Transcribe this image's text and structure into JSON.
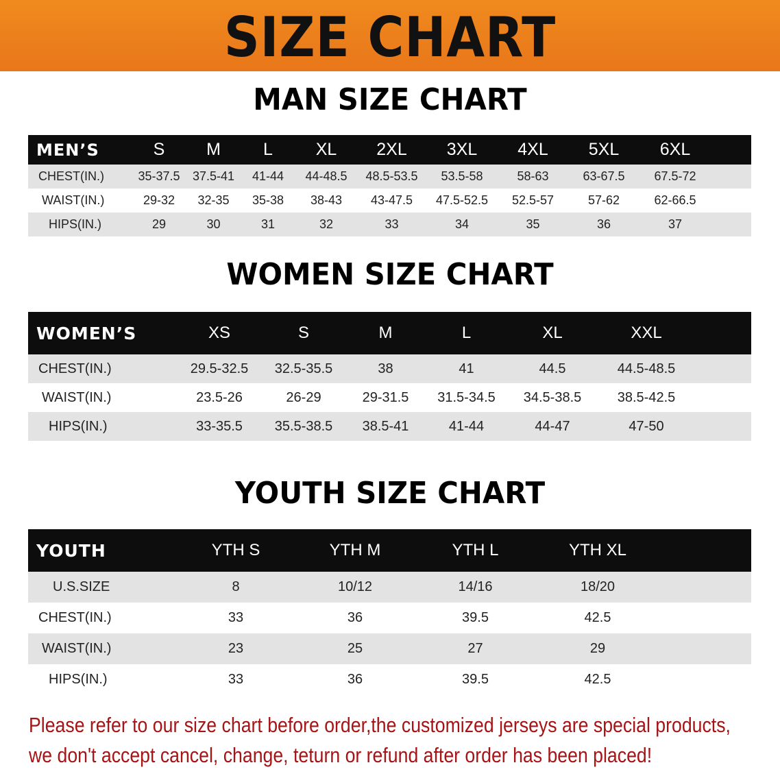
{
  "banner_title": "SIZE CHART",
  "sections": [
    {
      "title": "MAN SIZE CHART",
      "header": "MEN’S",
      "sizes": [
        "S",
        "M",
        "L",
        "XL",
        "2XL",
        "3XL",
        "4XL",
        "5XL",
        "6XL"
      ],
      "rows": [
        {
          "label": "CHEST(IN.)",
          "values": [
            "35-37.5",
            "37.5-41",
            "41-44",
            "44-48.5",
            "48.5-53.5",
            "53.5-58",
            "58-63",
            "63-67.5",
            "67.5-72"
          ]
        },
        {
          "label": "WAIST(IN.)",
          "values": [
            "29-32",
            "32-35",
            "35-38",
            "38-43",
            "43-47.5",
            "47.5-52.5",
            "52.5-57",
            "57-62",
            "62-66.5"
          ]
        },
        {
          "label": "HIPS(IN.)",
          "values": [
            "29",
            "30",
            "31",
            "32",
            "33",
            "34",
            "35",
            "36",
            "37"
          ]
        }
      ]
    },
    {
      "title": "WOMEN SIZE CHART",
      "header": "WOMEN’S",
      "sizes": [
        "XS",
        "S",
        "M",
        "L",
        "XL",
        "XXL"
      ],
      "rows": [
        {
          "label": "CHEST(IN.)",
          "values": [
            "29.5-32.5",
            "32.5-35.5",
            "38",
            "41",
            "44.5",
            "44.5-48.5"
          ]
        },
        {
          "label": "WAIST(IN.)",
          "values": [
            "23.5-26",
            "26-29",
            "29-31.5",
            "31.5-34.5",
            "34.5-38.5",
            "38.5-42.5"
          ]
        },
        {
          "label": "HIPS(IN.)",
          "values": [
            "33-35.5",
            "35.5-38.5",
            "38.5-41",
            "41-44",
            "44-47",
            "47-50"
          ]
        }
      ]
    },
    {
      "title": "YOUTH SIZE CHART",
      "header": "YOUTH",
      "sizes": [
        "YTH S",
        "YTH M",
        "YTH L",
        "YTH XL"
      ],
      "rows": [
        {
          "label": "U.S.SIZE",
          "values": [
            "8",
            "10/12",
            "14/16",
            "18/20"
          ]
        },
        {
          "label": "CHEST(IN.)",
          "values": [
            "33",
            "36",
            "39.5",
            "42.5"
          ]
        },
        {
          "label": "WAIST(IN.)",
          "values": [
            "23",
            "25",
            "27",
            "29"
          ]
        },
        {
          "label": "HIPS(IN.)",
          "values": [
            "33",
            "36",
            "39.5",
            "42.5"
          ]
        }
      ]
    }
  ],
  "notice": {
    "line1": "Please refer to our size chart before order,the customized jerseys are special products,",
    "line2": "we don't accept cancel, change, teturn or refund after order has been placed!"
  },
  "colors": {
    "banner": "#ec801c",
    "header_row": "#0d0d0d",
    "shaded_row": "#e3e3e3",
    "notice_text": "#a61416"
  }
}
